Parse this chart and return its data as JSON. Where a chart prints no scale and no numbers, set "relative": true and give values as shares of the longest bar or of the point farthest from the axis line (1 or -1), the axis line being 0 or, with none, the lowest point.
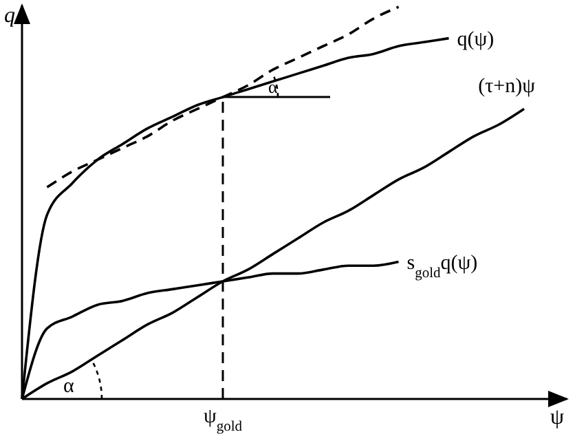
{
  "chart_data": {
    "type": "line",
    "relative": true,
    "xlabel": "ψ",
    "ylabel": "q",
    "categories": [
      null,
      null,
      null,
      null,
      null,
      null,
      null,
      null,
      null,
      null,
      null,
      null,
      null,
      null,
      null,
      null,
      null,
      null,
      null,
      null,
      null
    ],
    "series": [
      {
        "name": "q(ψ)",
        "color": "#000000",
        "values": [
          0,
          0.47,
          0.55,
          0.61,
          0.65,
          0.69,
          0.72,
          0.75,
          0.77,
          0.79,
          0.81,
          0.83,
          0.85,
          0.87,
          0.88,
          0.9,
          0.91,
          0.92,
          null,
          null,
          null
        ]
      },
      {
        "name": "(τ+n)ψ",
        "color": "#000000",
        "values": [
          0,
          0.04,
          0.07,
          0.11,
          0.15,
          0.19,
          0.22,
          0.26,
          0.3,
          0.33,
          0.37,
          0.41,
          0.45,
          0.48,
          0.52,
          0.56,
          0.59,
          0.63,
          0.67,
          0.7,
          0.74
        ]
      },
      {
        "name": "s$_{gold}$q(ψ)",
        "color": "#000000",
        "values": [
          0,
          0.18,
          0.21,
          0.24,
          0.25,
          0.27,
          0.28,
          0.29,
          0.3,
          0.31,
          0.32,
          0.32,
          0.33,
          0.34,
          0.34,
          0.35,
          null,
          null,
          null,
          null,
          null
        ]
      },
      {
        "color": "#000000",
        "line_style": "dashed",
        "values": [
          null,
          0.54,
          0.58,
          0.61,
          0.64,
          0.67,
          0.71,
          0.74,
          0.77,
          0.8,
          0.84,
          0.87,
          0.9,
          0.93,
          0.97,
          1,
          null,
          null,
          null,
          null,
          null
        ]
      }
    ],
    "annotations": [
      "α",
      "α",
      "ψ$_{gold}$"
    ]
  }
}
